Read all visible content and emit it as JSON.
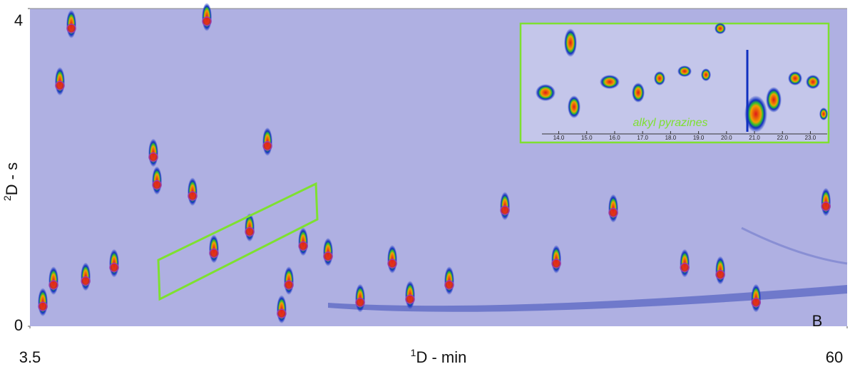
{
  "chart_data": {
    "type": "contour",
    "x_label_sup": "1",
    "x_label": "D - min",
    "y_label_sup": "2",
    "y_label": "D - s",
    "panel_label": "B",
    "inset_annotation": "alkyl pyrazines",
    "xlim": [
      3.5,
      60
    ],
    "ylim": [
      0,
      4
    ],
    "xticks": [
      3.5,
      60
    ],
    "yticks": [
      0,
      4
    ],
    "background": "#afb0e2",
    "peak_color": "#e0201c",
    "outline_color": "#9a3ea8",
    "x": [
      4.39,
      5.13,
      7.35,
      9.32,
      12.03,
      14.74,
      16.22,
      19.92,
      20.9,
      21.4,
      22.39,
      26.33,
      28.55,
      29.78,
      36.34,
      43.83,
      51.23,
      53.7,
      58.53,
      5.57,
      6.36,
      15.73,
      12.28,
      18.69,
      24.11,
      32.49,
      39.89,
      48.77
    ],
    "values": [
      0.25,
      0.52,
      0.57,
      0.74,
      2.13,
      1.64,
      0.92,
      2.27,
      0.16,
      0.52,
      1.01,
      0.3,
      0.79,
      0.34,
      1.46,
      1.43,
      0.65,
      0.3,
      1.51,
      3.03,
      3.75,
      3.84,
      1.78,
      1.19,
      0.88,
      0.52,
      0.79,
      0.74
    ],
    "inset_xlim": [
      13.4,
      23.6
    ],
    "inset_xticks": [
      {
        "value": 14,
        "label": "14.0"
      },
      {
        "value": 15,
        "label": "15.0"
      },
      {
        "value": 16,
        "label": "16.0"
      },
      {
        "value": 17,
        "label": "17.0"
      },
      {
        "value": 18,
        "label": "18.0"
      },
      {
        "value": 19,
        "label": "19.0"
      },
      {
        "value": 20,
        "label": "20.0"
      },
      {
        "value": 21,
        "label": "21.0"
      },
      {
        "value": 22,
        "label": "22.0"
      },
      {
        "value": 23,
        "label": "23.0"
      }
    ]
  }
}
